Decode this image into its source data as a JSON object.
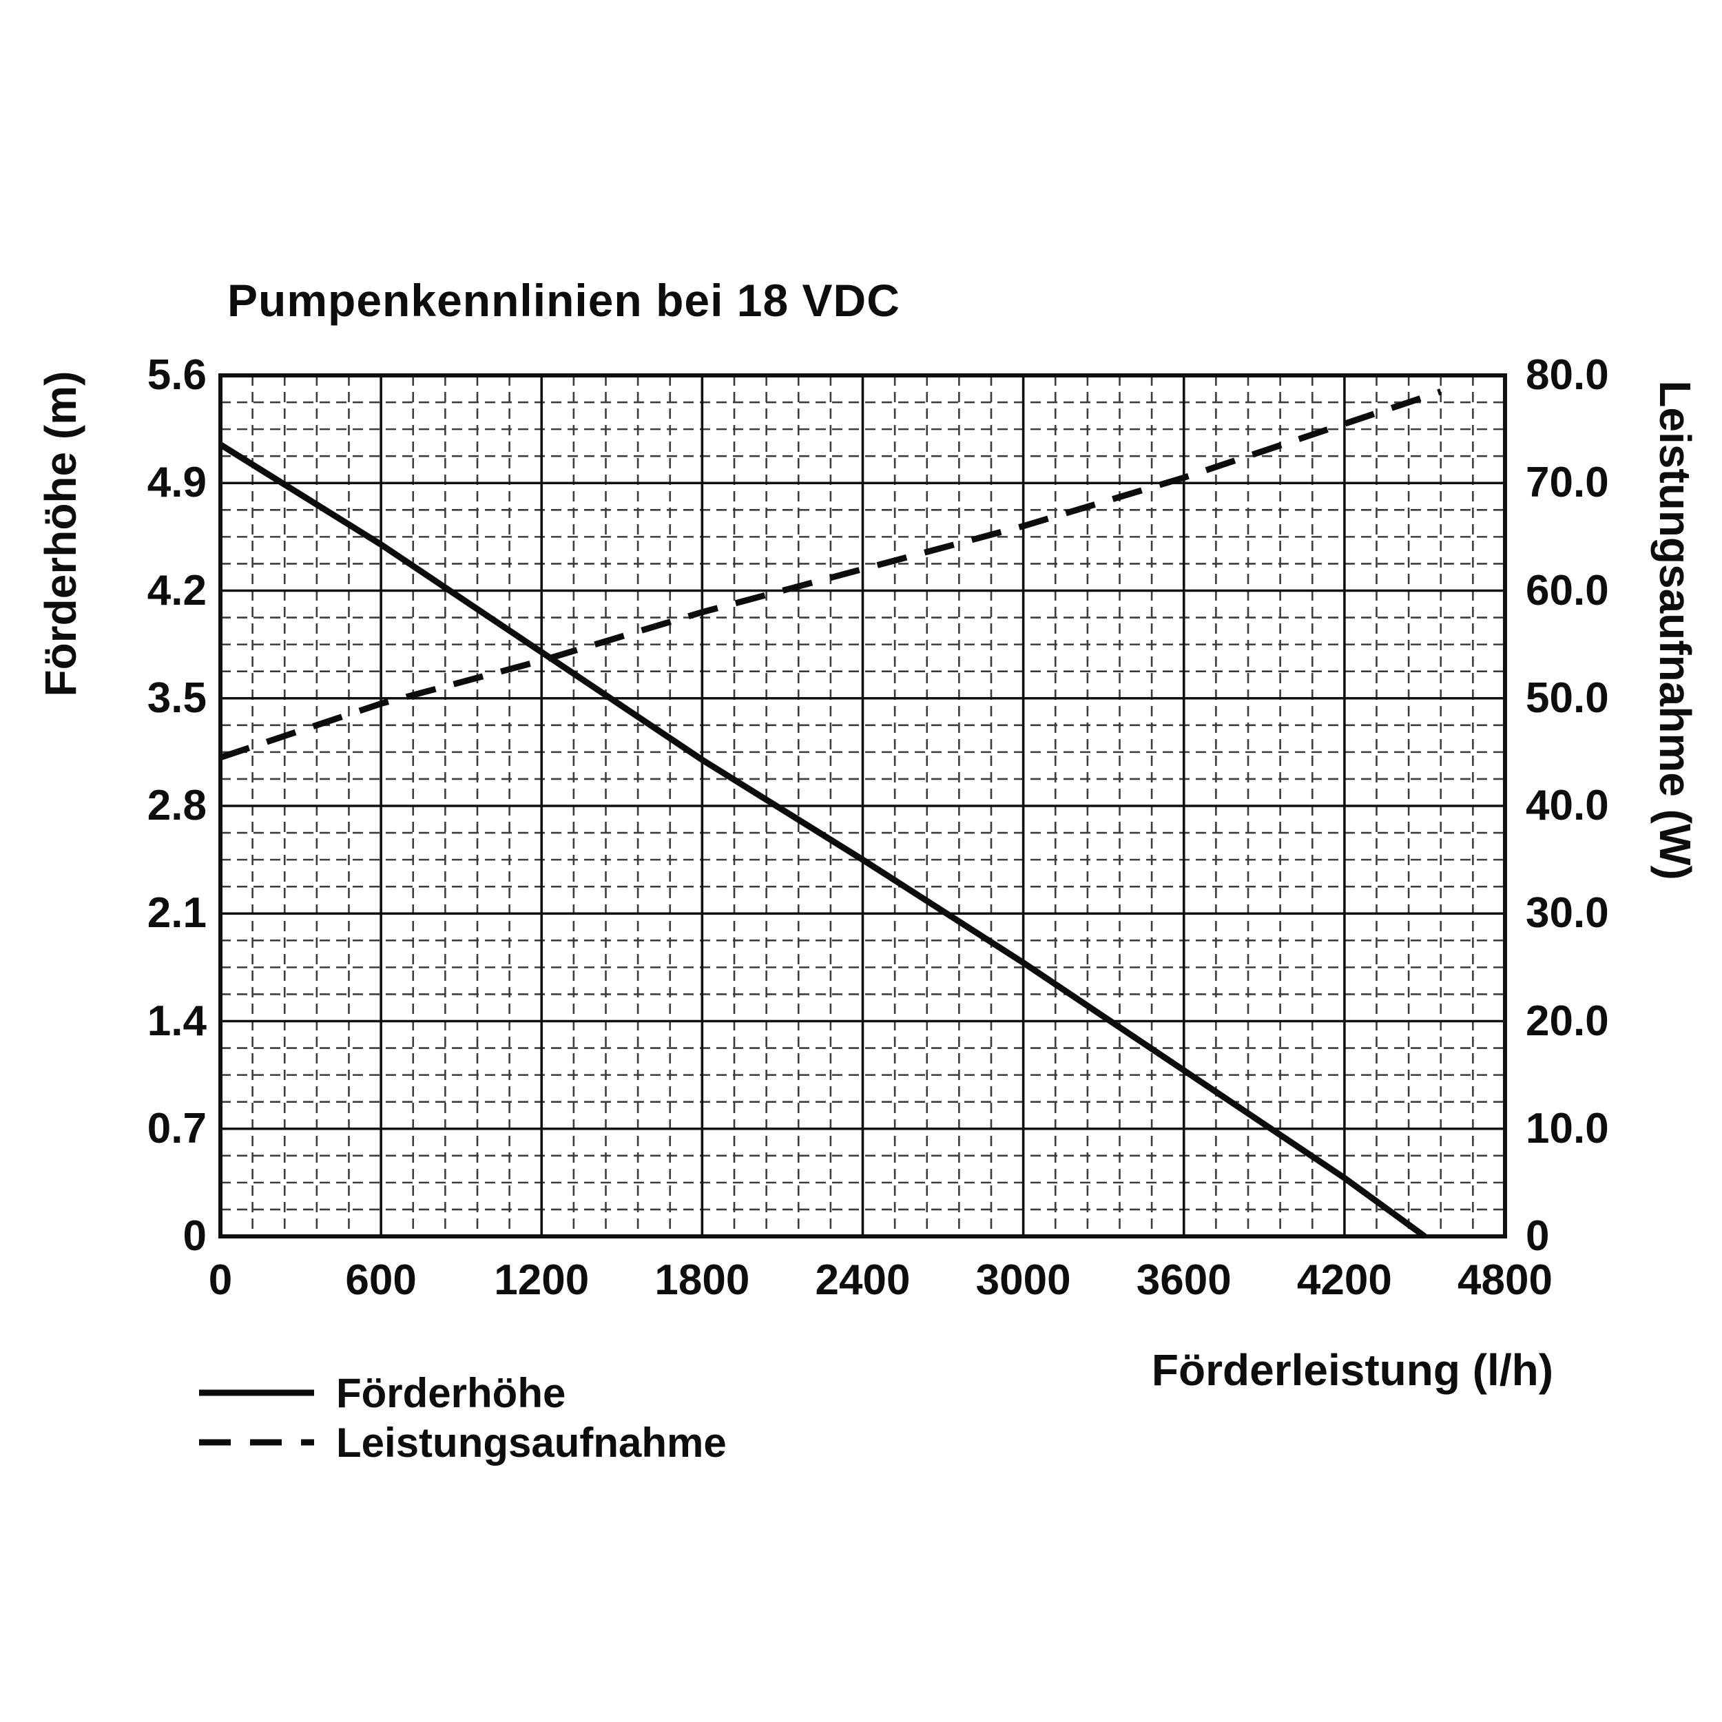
{
  "chart_data": {
    "type": "line",
    "title": "Pumpenkennlinien bei 18 VDC",
    "xlabel": "Förderleistung (l/h)",
    "ylabel_left": "Förderhöhe (m)",
    "ylabel_right": "Leistungsaufnahme (W)",
    "xlim": [
      0,
      4800
    ],
    "ylim_left": [
      0,
      5.6
    ],
    "ylim_right": [
      0,
      80
    ],
    "x_ticks": [
      "0",
      "600",
      "1200",
      "1800",
      "2400",
      "3000",
      "3600",
      "4200",
      "4800"
    ],
    "y_ticks_left": [
      "0",
      "0.7",
      "1.4",
      "2.1",
      "2.8",
      "3.5",
      "4.2",
      "4.9",
      "5.6"
    ],
    "y_ticks_right": [
      "0",
      "10.0",
      "20.0",
      "30.0",
      "40.0",
      "50.0",
      "60.0",
      "70.0",
      "80.0"
    ],
    "grid": {
      "major": true,
      "minor": true,
      "minor_style": "dashed"
    },
    "legend_position": "bottom-left",
    "line_color": "#0c0c0c",
    "series": [
      {
        "name": "Förderhöhe",
        "axis": "left",
        "style": "solid",
        "points": [
          [
            0,
            5.15
          ],
          [
            600,
            4.5
          ],
          [
            1200,
            3.8
          ],
          [
            1800,
            3.1
          ],
          [
            2400,
            2.45
          ],
          [
            3000,
            1.78
          ],
          [
            3600,
            1.08
          ],
          [
            4200,
            0.38
          ],
          [
            4500,
            0
          ]
        ]
      },
      {
        "name": "Leistungsaufnahme",
        "axis": "right",
        "style": "dashed",
        "points": [
          [
            0,
            44.5
          ],
          [
            600,
            49.5
          ],
          [
            1200,
            53.5
          ],
          [
            1800,
            58
          ],
          [
            2400,
            62
          ],
          [
            3000,
            66
          ],
          [
            3600,
            70.5
          ],
          [
            4200,
            75.5
          ],
          [
            4560,
            78.5
          ]
        ]
      }
    ],
    "legend": [
      {
        "label": "Förderhöhe",
        "style": "solid"
      },
      {
        "label": "Leistungsaufnahme",
        "style": "dashed"
      }
    ]
  }
}
